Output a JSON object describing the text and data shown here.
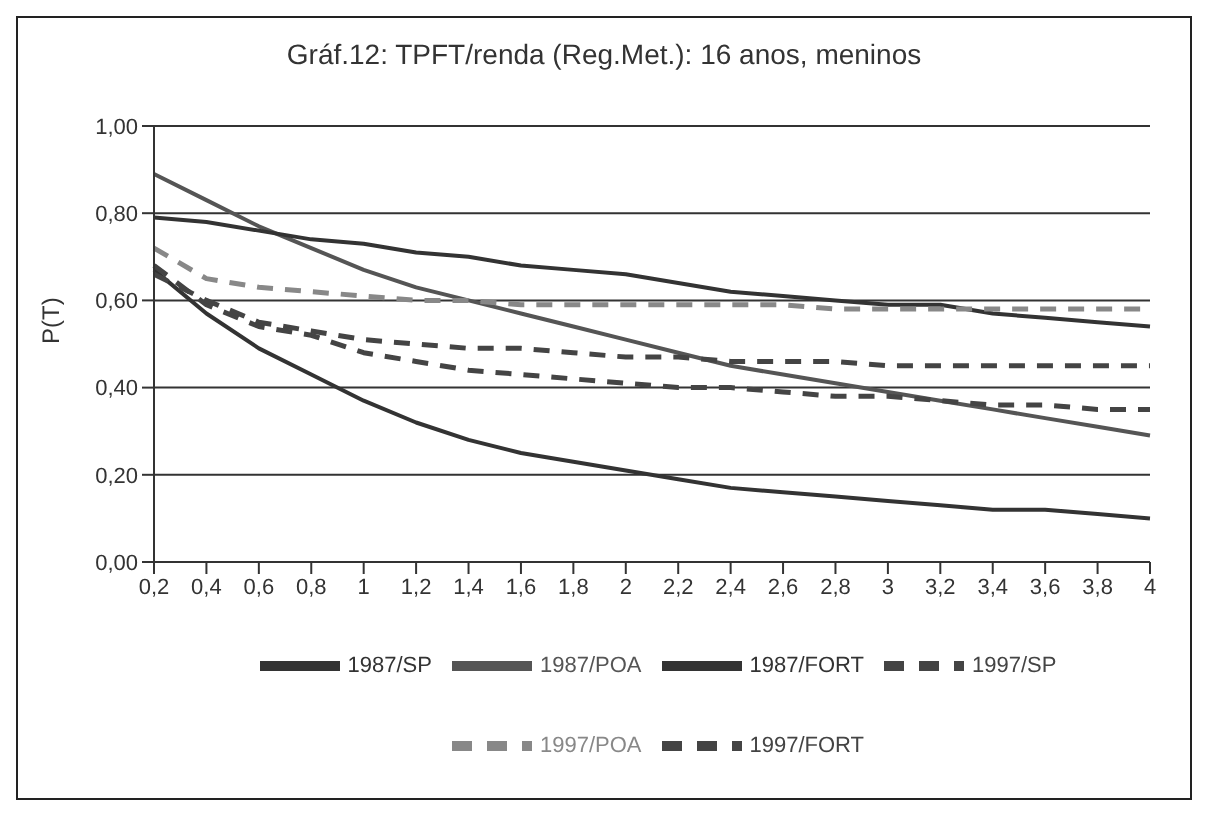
{
  "chart_data": {
    "type": "line",
    "title": "Gráf.12: TPFT/renda (Reg.Met.): 16 anos, meninos",
    "ylabel": "P(T)",
    "categories": [
      "0,2",
      "0,4",
      "0,6",
      "0,8",
      "1",
      "1,2",
      "1,4",
      "1,6",
      "1,8",
      "2",
      "2,2",
      "2,4",
      "2,6",
      "2,8",
      "3",
      "3,2",
      "3,4",
      "3,6",
      "3,8",
      "4"
    ],
    "ylim": [
      0,
      1
    ],
    "yticks": [
      {
        "value": 0,
        "label": "0,00"
      },
      {
        "value": 0.2,
        "label": "0,20"
      },
      {
        "value": 0.4,
        "label": "0,40"
      },
      {
        "value": 0.6,
        "label": "0,60"
      },
      {
        "value": 0.8,
        "label": "0,80"
      },
      {
        "value": 1,
        "label": "1,00"
      }
    ],
    "grid": "y",
    "legend": "bottom",
    "marker": "none",
    "series": [
      {
        "name": "1987/SP",
        "color": "#333333",
        "line_style": "solid",
        "values": [
          0.67,
          0.57,
          0.49,
          0.43,
          0.37,
          0.32,
          0.28,
          0.25,
          0.23,
          0.21,
          0.19,
          0.17,
          0.16,
          0.15,
          0.14,
          0.13,
          0.12,
          0.12,
          0.11,
          0.1
        ]
      },
      {
        "name": "1987/POA",
        "color": "#555555",
        "line_style": "solid",
        "values": [
          0.89,
          0.83,
          0.77,
          0.72,
          0.67,
          0.63,
          0.6,
          0.57,
          0.54,
          0.51,
          0.48,
          0.45,
          0.43,
          0.41,
          0.39,
          0.37,
          0.35,
          0.33,
          0.31,
          0.29
        ]
      },
      {
        "name": "1987/FORT",
        "color": "#333333",
        "line_style": "solid",
        "values": [
          0.79,
          0.78,
          0.76,
          0.74,
          0.73,
          0.71,
          0.7,
          0.68,
          0.67,
          0.66,
          0.64,
          0.62,
          0.61,
          0.6,
          0.59,
          0.59,
          0.57,
          0.56,
          0.55,
          0.54
        ]
      },
      {
        "name": "1997/SP",
        "color": "#444444",
        "line_style": "dashed",
        "values": [
          0.68,
          0.59,
          0.54,
          0.52,
          0.48,
          0.46,
          0.44,
          0.43,
          0.42,
          0.41,
          0.4,
          0.4,
          0.39,
          0.38,
          0.38,
          0.37,
          0.36,
          0.36,
          0.35,
          0.35
        ]
      },
      {
        "name": "1997/POA",
        "color": "#888888",
        "line_style": "dashed",
        "values": [
          0.72,
          0.65,
          0.63,
          0.62,
          0.61,
          0.6,
          0.6,
          0.59,
          0.59,
          0.59,
          0.59,
          0.59,
          0.59,
          0.58,
          0.58,
          0.58,
          0.58,
          0.58,
          0.58,
          0.58
        ]
      },
      {
        "name": "1997/FORT",
        "color": "#444444",
        "line_style": "dashed",
        "values": [
          0.66,
          0.6,
          0.55,
          0.53,
          0.51,
          0.5,
          0.49,
          0.49,
          0.48,
          0.47,
          0.47,
          0.46,
          0.46,
          0.46,
          0.45,
          0.45,
          0.45,
          0.45,
          0.45,
          0.45
        ]
      }
    ]
  }
}
